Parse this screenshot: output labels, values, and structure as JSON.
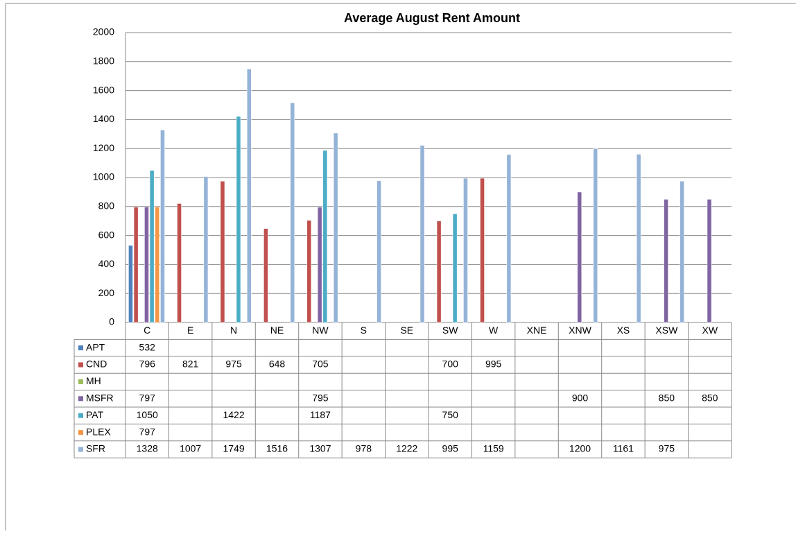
{
  "chart_data": {
    "type": "bar",
    "title": "Average August Rent Amount",
    "categories": [
      "C",
      "E",
      "N",
      "NE",
      "NW",
      "S",
      "SE",
      "SW",
      "W",
      "XNE",
      "XNW",
      "XS",
      "XSW",
      "XW"
    ],
    "series": [
      {
        "name": "APT",
        "color": "#4f81bd",
        "values": [
          532,
          null,
          null,
          null,
          null,
          null,
          null,
          null,
          null,
          null,
          null,
          null,
          null,
          null
        ]
      },
      {
        "name": "CND",
        "color": "#c0504d",
        "values": [
          796,
          821,
          975,
          648,
          705,
          null,
          null,
          700,
          995,
          null,
          null,
          null,
          null,
          null
        ]
      },
      {
        "name": "MH",
        "color": "#9bbb59",
        "values": [
          null,
          null,
          null,
          null,
          null,
          null,
          null,
          null,
          null,
          null,
          null,
          null,
          null,
          null
        ]
      },
      {
        "name": "MSFR",
        "color": "#8064a2",
        "values": [
          797,
          null,
          null,
          null,
          795,
          null,
          null,
          null,
          null,
          null,
          900,
          null,
          850,
          850
        ]
      },
      {
        "name": "PAT",
        "color": "#4bacc6",
        "values": [
          1050,
          null,
          1422,
          null,
          1187,
          null,
          null,
          750,
          null,
          null,
          null,
          null,
          null,
          null
        ]
      },
      {
        "name": "PLEX",
        "color": "#f79646",
        "values": [
          797,
          null,
          null,
          null,
          null,
          null,
          null,
          null,
          null,
          null,
          null,
          null,
          null,
          null
        ]
      },
      {
        "name": "SFR",
        "color": "#95b3d7",
        "values": [
          1328,
          1007,
          1749,
          1516,
          1307,
          978,
          1222,
          995,
          1159,
          null,
          1200,
          1161,
          975,
          null
        ]
      }
    ],
    "ylim": [
      0,
      2000
    ],
    "yticks": [
      0,
      200,
      400,
      600,
      800,
      1000,
      1200,
      1400,
      1600,
      1800,
      2000
    ],
    "grid": true
  }
}
